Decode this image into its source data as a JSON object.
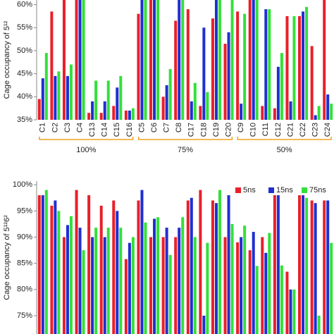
{
  "chart_data": [
    {
      "type": "bar",
      "y_label": "Cage occupancy of 5¹²",
      "categories": [
        "C1",
        "C2",
        "C3",
        "C4",
        "C13",
        "C14",
        "C15",
        "C16",
        "C5",
        "C6",
        "C7",
        "C8",
        "C17",
        "C18",
        "C19",
        "C20",
        "C9",
        "C10",
        "C11",
        "C12",
        "C21",
        "C22",
        "C23",
        "C24"
      ],
      "groups": [
        "100%",
        "75%",
        "50%"
      ],
      "series": [
        {
          "name": "5ns",
          "color": "#e8202a",
          "values": [
            39.5,
            58.5,
            62,
            62,
            36.5,
            36.5,
            38,
            37,
            58,
            62,
            40,
            56.5,
            59,
            38,
            57,
            51.5,
            58.5,
            61,
            38,
            37.5,
            57.5,
            57.5,
            51,
            62
          ]
        },
        {
          "name": "15ns",
          "color": "#1f2fd0",
          "values": [
            44,
            44.5,
            44.5,
            62,
            39,
            39,
            42,
            37,
            62,
            62,
            42.5,
            62,
            39,
            55,
            62,
            54,
            38.5,
            62,
            59,
            46.5,
            39,
            58.5,
            36,
            40.5
          ]
        },
        {
          "name": "75ns",
          "color": "#33e03a",
          "values": [
            49.5,
            45.5,
            47,
            62,
            43.5,
            43.5,
            44.5,
            37.5,
            62,
            62,
            46,
            62,
            43,
            41,
            62,
            61,
            58,
            62,
            59,
            49.5,
            57.5,
            59.5,
            38,
            38.5
          ]
        }
      ],
      "ylim": [
        35,
        61
      ],
      "yticks": [
        {
          "value": 35,
          "label": "35%"
        },
        {
          "value": 40,
          "label": "40%"
        },
        {
          "value": 45,
          "label": "45%"
        },
        {
          "value": 50,
          "label": "50%"
        },
        {
          "value": 55,
          "label": "55%"
        },
        {
          "value": 60,
          "label": "60%"
        }
      ]
    },
    {
      "type": "bar",
      "y_label": "Cage occupancy of 5¹²6²",
      "categories": [
        null,
        null,
        null,
        null,
        null,
        null,
        null,
        null,
        null,
        null,
        null,
        null,
        null,
        null,
        null,
        null,
        null,
        null,
        null,
        null,
        null,
        null,
        null,
        null
      ],
      "series": [
        {
          "name": "5ns",
          "color": "#e8202a",
          "values": [
            98,
            96,
            90,
            99,
            98,
            96,
            97,
            85.8,
            97,
            90,
            90,
            90,
            97,
            99,
            97,
            90,
            89,
            87.5,
            90,
            98,
            83.4,
            98,
            97,
            97
          ]
        },
        {
          "name": "15ns",
          "color": "#1f2fd0",
          "values": [
            98,
            97,
            92.3,
            91.8,
            90,
            90,
            95,
            88.9,
            99,
            93.5,
            91.8,
            91.8,
            97.5,
            75,
            96.5,
            98,
            90,
            91,
            87,
            98,
            80,
            98,
            96.5,
            97
          ]
        },
        {
          "name": "75ns",
          "color": "#33e03a",
          "values": [
            99,
            95,
            94,
            87.5,
            91.8,
            91.8,
            91.8,
            90,
            92.8,
            93.8,
            86.6,
            93.8,
            90,
            88.9,
            99,
            92.5,
            92.2,
            84.5,
            90.8,
            84.6,
            80,
            97.5,
            75,
            88.9
          ]
        }
      ],
      "ylim": [
        71.5,
        100.7
      ],
      "yticks": [
        {
          "value": 75,
          "label": "75%"
        },
        {
          "value": 80,
          "label": "80%"
        },
        {
          "value": 85,
          "label": "85%"
        },
        {
          "value": 90,
          "label": "90%"
        },
        {
          "value": 95,
          "label": "95%"
        },
        {
          "value": 100,
          "label": "100%"
        }
      ],
      "legend": "top-right"
    }
  ]
}
